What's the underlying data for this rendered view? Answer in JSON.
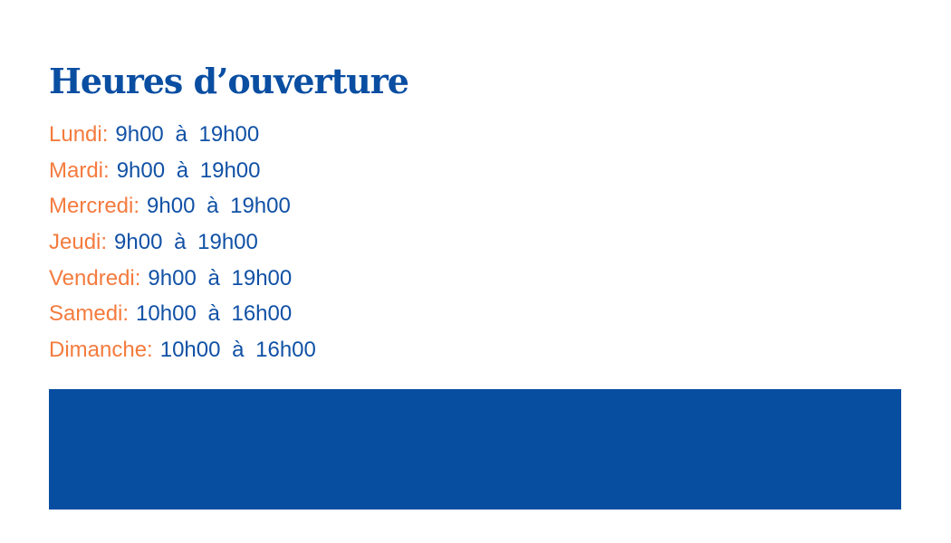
{
  "title": "Heures d’ouverture",
  "hours": [
    {
      "day": "Lundi:",
      "time": "9h00 à 19h00"
    },
    {
      "day": "Mardi:",
      "time": "9h00 à 19h00"
    },
    {
      "day": "Mercredi:",
      "time": "9h00 à 19h00"
    },
    {
      "day": "Jeudi:",
      "time": "9h00 à 19h00"
    },
    {
      "day": "Vendredi:",
      "time": "9h00 à 19h00"
    },
    {
      "day": "Samedi:",
      "time": "10h00 à 16h00"
    },
    {
      "day": "Dimanche:",
      "time": "10h00 à 16h00"
    }
  ],
  "colors": {
    "primary": "#0a4ea2",
    "accent": "#f47b3e",
    "block": "#074ea1"
  }
}
